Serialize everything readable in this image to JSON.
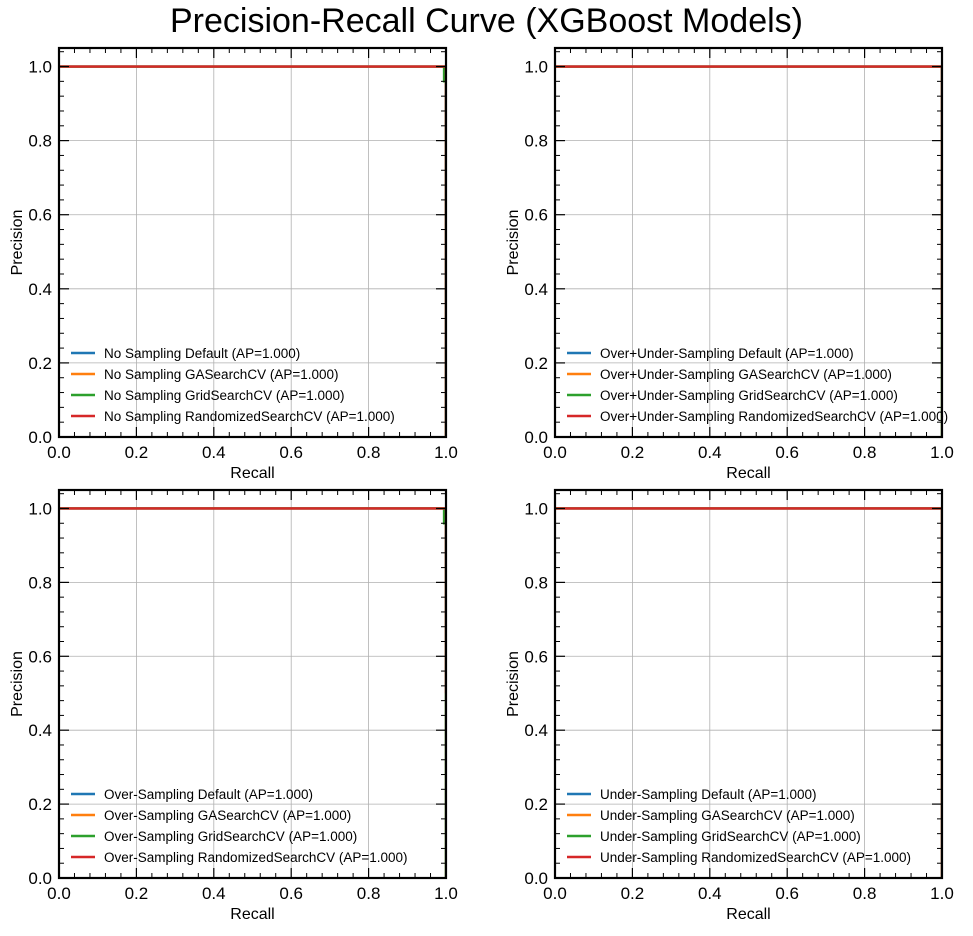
{
  "figure": {
    "title": "Precision-Recall Curve (XGBoost Models)"
  },
  "colors": {
    "Default": "#1f77b4",
    "GASearchCV": "#ff7f0e",
    "GridSearchCV": "#2ca02c",
    "RandomizedSearchCV": "#d62728",
    "grid": "#b0b0b0",
    "frame": "#000000"
  },
  "chart_data": [
    {
      "type": "line",
      "xlabel": "Recall",
      "ylabel": "Precision",
      "xlim": [
        0.0,
        1.0
      ],
      "ylim": [
        0.0,
        1.05
      ],
      "xticks": [
        "0.0",
        "0.2",
        "0.4",
        "0.6",
        "0.8",
        "1.0"
      ],
      "yticks": [
        "0.0",
        "0.2",
        "0.4",
        "0.6",
        "0.8",
        "1.0"
      ],
      "grid": true,
      "legend_position": "lower-left",
      "series": [
        {
          "name": "No Sampling Default (AP=1.000)",
          "key": "Default",
          "x": [
            0.0,
            1.0,
            1.0
          ],
          "y": [
            1.0,
            1.0,
            0.0
          ]
        },
        {
          "name": "No Sampling GASearchCV (AP=1.000)",
          "key": "GASearchCV",
          "x": [
            0.0,
            1.0,
            1.0
          ],
          "y": [
            1.0,
            1.0,
            0.0
          ]
        },
        {
          "name": "No Sampling GridSearchCV (AP=1.000)",
          "key": "GridSearchCV",
          "x": [
            0.0,
            0.995,
            0.995,
            1.0,
            1.0
          ],
          "y": [
            1.0,
            1.0,
            0.96,
            0.96,
            0.0
          ]
        },
        {
          "name": "No Sampling RandomizedSearchCV (AP=1.000)",
          "key": "RandomizedSearchCV",
          "x": [
            0.0,
            1.0,
            1.0
          ],
          "y": [
            1.0,
            1.0,
            0.0
          ]
        }
      ]
    },
    {
      "type": "line",
      "xlabel": "Recall",
      "ylabel": "Precision",
      "xlim": [
        0.0,
        1.0
      ],
      "ylim": [
        0.0,
        1.05
      ],
      "xticks": [
        "0.0",
        "0.2",
        "0.4",
        "0.6",
        "0.8",
        "1.0"
      ],
      "yticks": [
        "0.0",
        "0.2",
        "0.4",
        "0.6",
        "0.8",
        "1.0"
      ],
      "grid": true,
      "legend_position": "lower-left",
      "series": [
        {
          "name": "Over+Under-Sampling Default (AP=1.000)",
          "key": "Default",
          "x": [
            0.0,
            1.0,
            1.0
          ],
          "y": [
            1.0,
            1.0,
            0.0
          ]
        },
        {
          "name": "Over+Under-Sampling GASearchCV (AP=1.000)",
          "key": "GASearchCV",
          "x": [
            0.0,
            1.0,
            1.0
          ],
          "y": [
            1.0,
            1.0,
            0.0
          ]
        },
        {
          "name": "Over+Under-Sampling GridSearchCV (AP=1.000)",
          "key": "GridSearchCV",
          "x": [
            0.0,
            1.0,
            1.0
          ],
          "y": [
            1.0,
            1.0,
            0.0
          ]
        },
        {
          "name": "Over+Under-Sampling RandomizedSearchCV (AP=1.000)",
          "key": "RandomizedSearchCV",
          "x": [
            0.0,
            1.0,
            1.0
          ],
          "y": [
            1.0,
            1.0,
            0.33
          ]
        }
      ]
    },
    {
      "type": "line",
      "xlabel": "Recall",
      "ylabel": "Precision",
      "xlim": [
        0.0,
        1.0
      ],
      "ylim": [
        0.0,
        1.05
      ],
      "xticks": [
        "0.0",
        "0.2",
        "0.4",
        "0.6",
        "0.8",
        "1.0"
      ],
      "yticks": [
        "0.0",
        "0.2",
        "0.4",
        "0.6",
        "0.8",
        "1.0"
      ],
      "grid": true,
      "legend_position": "lower-left",
      "series": [
        {
          "name": "Over-Sampling Default (AP=1.000)",
          "key": "Default",
          "x": [
            0.0,
            1.0,
            1.0
          ],
          "y": [
            1.0,
            1.0,
            0.0
          ]
        },
        {
          "name": "Over-Sampling GASearchCV (AP=1.000)",
          "key": "GASearchCV",
          "x": [
            0.0,
            1.0,
            1.0
          ],
          "y": [
            1.0,
            1.0,
            0.0
          ]
        },
        {
          "name": "Over-Sampling GridSearchCV (AP=1.000)",
          "key": "GridSearchCV",
          "x": [
            0.0,
            0.995,
            0.995,
            1.0,
            1.0
          ],
          "y": [
            1.0,
            1.0,
            0.96,
            0.96,
            0.0
          ]
        },
        {
          "name": "Over-Sampling RandomizedSearchCV (AP=1.000)",
          "key": "RandomizedSearchCV",
          "x": [
            0.0,
            1.0,
            1.0
          ],
          "y": [
            1.0,
            1.0,
            0.5
          ]
        }
      ]
    },
    {
      "type": "line",
      "xlabel": "Recall",
      "ylabel": "Precision",
      "xlim": [
        0.0,
        1.0
      ],
      "ylim": [
        0.0,
        1.05
      ],
      "xticks": [
        "0.0",
        "0.2",
        "0.4",
        "0.6",
        "0.8",
        "1.0"
      ],
      "yticks": [
        "0.0",
        "0.2",
        "0.4",
        "0.6",
        "0.8",
        "1.0"
      ],
      "grid": true,
      "legend_position": "lower-left",
      "series": [
        {
          "name": "Under-Sampling Default (AP=1.000)",
          "key": "Default",
          "x": [
            0.0,
            1.0,
            1.0
          ],
          "y": [
            1.0,
            1.0,
            0.0
          ]
        },
        {
          "name": "Under-Sampling GASearchCV (AP=1.000)",
          "key": "GASearchCV",
          "x": [
            0.0,
            1.0,
            1.0
          ],
          "y": [
            1.0,
            1.0,
            0.0
          ]
        },
        {
          "name": "Under-Sampling GridSearchCV (AP=1.000)",
          "key": "GridSearchCV",
          "x": [
            0.0,
            1.0,
            1.0
          ],
          "y": [
            1.0,
            1.0,
            0.0
          ]
        },
        {
          "name": "Under-Sampling RandomizedSearchCV (AP=1.000)",
          "key": "RandomizedSearchCV",
          "x": [
            0.0,
            1.0,
            1.0
          ],
          "y": [
            1.0,
            1.0,
            0.0
          ]
        }
      ]
    }
  ]
}
